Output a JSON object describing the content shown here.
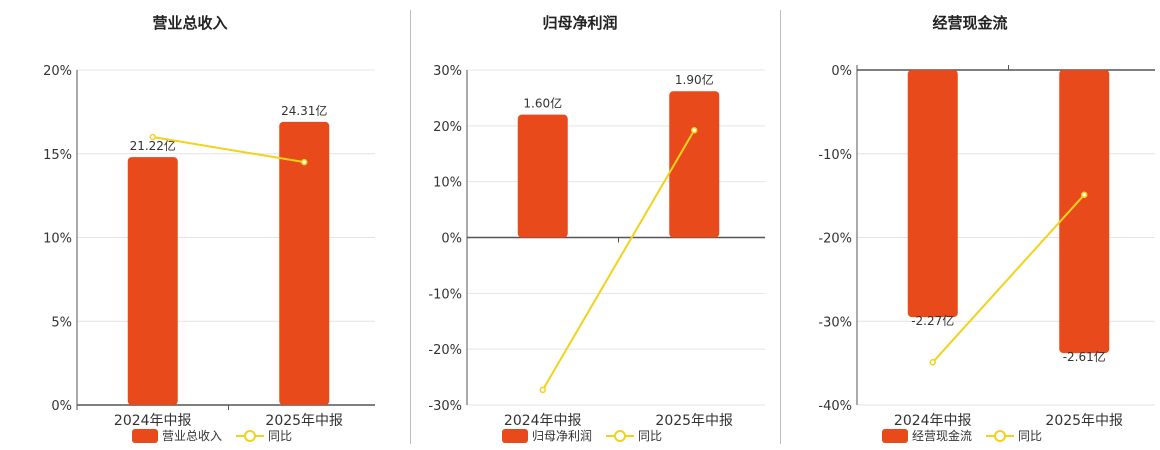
{
  "colors": {
    "bar": "#e84a1b",
    "line": "#f2d21b",
    "grid": "#e4e4e4",
    "axis": "#555555"
  },
  "chart_data": [
    {
      "type": "bar",
      "title": "营业总收入",
      "categories": [
        "2024年中报",
        "2025年中报"
      ],
      "y_tick_labels": [
        "0%",
        "5%",
        "10%",
        "15%",
        "20%"
      ],
      "ylim": [
        0,
        20
      ],
      "series": [
        {
          "name": "营业总收入",
          "type": "bar",
          "values": [
            14.8,
            16.9
          ],
          "labels": [
            "21.22亿",
            "24.31亿"
          ]
        },
        {
          "name": "同比",
          "type": "line",
          "values": [
            16.0,
            14.5
          ]
        }
      ],
      "legend": "bottom"
    },
    {
      "type": "bar",
      "title": "归母净利润",
      "categories": [
        "2024年中报",
        "2025年中报"
      ],
      "y_tick_labels": [
        "-30%",
        "-20%",
        "-10%",
        "0%",
        "10%",
        "20%",
        "30%"
      ],
      "ylim": [
        -30,
        30
      ],
      "series": [
        {
          "name": "归母净利润",
          "type": "bar",
          "values": [
            22.0,
            26.2
          ],
          "labels": [
            "1.60亿",
            "1.90亿"
          ]
        },
        {
          "name": "同比",
          "type": "line",
          "values": [
            -27.3,
            19.2
          ]
        }
      ],
      "legend": "bottom"
    },
    {
      "type": "bar",
      "title": "经营现金流",
      "categories": [
        "2024年中报",
        "2025年中报"
      ],
      "y_tick_labels": [
        "-40%",
        "-30%",
        "-20%",
        "-10%",
        "0%"
      ],
      "ylim": [
        -40,
        0
      ],
      "series": [
        {
          "name": "经营现金流",
          "type": "bar",
          "values": [
            -29.5,
            -33.8
          ],
          "labels": [
            "-2.27亿",
            "-2.61亿"
          ]
        },
        {
          "name": "同比",
          "type": "line",
          "values": [
            -34.9,
            -14.9
          ]
        }
      ],
      "legend": "bottom"
    }
  ]
}
